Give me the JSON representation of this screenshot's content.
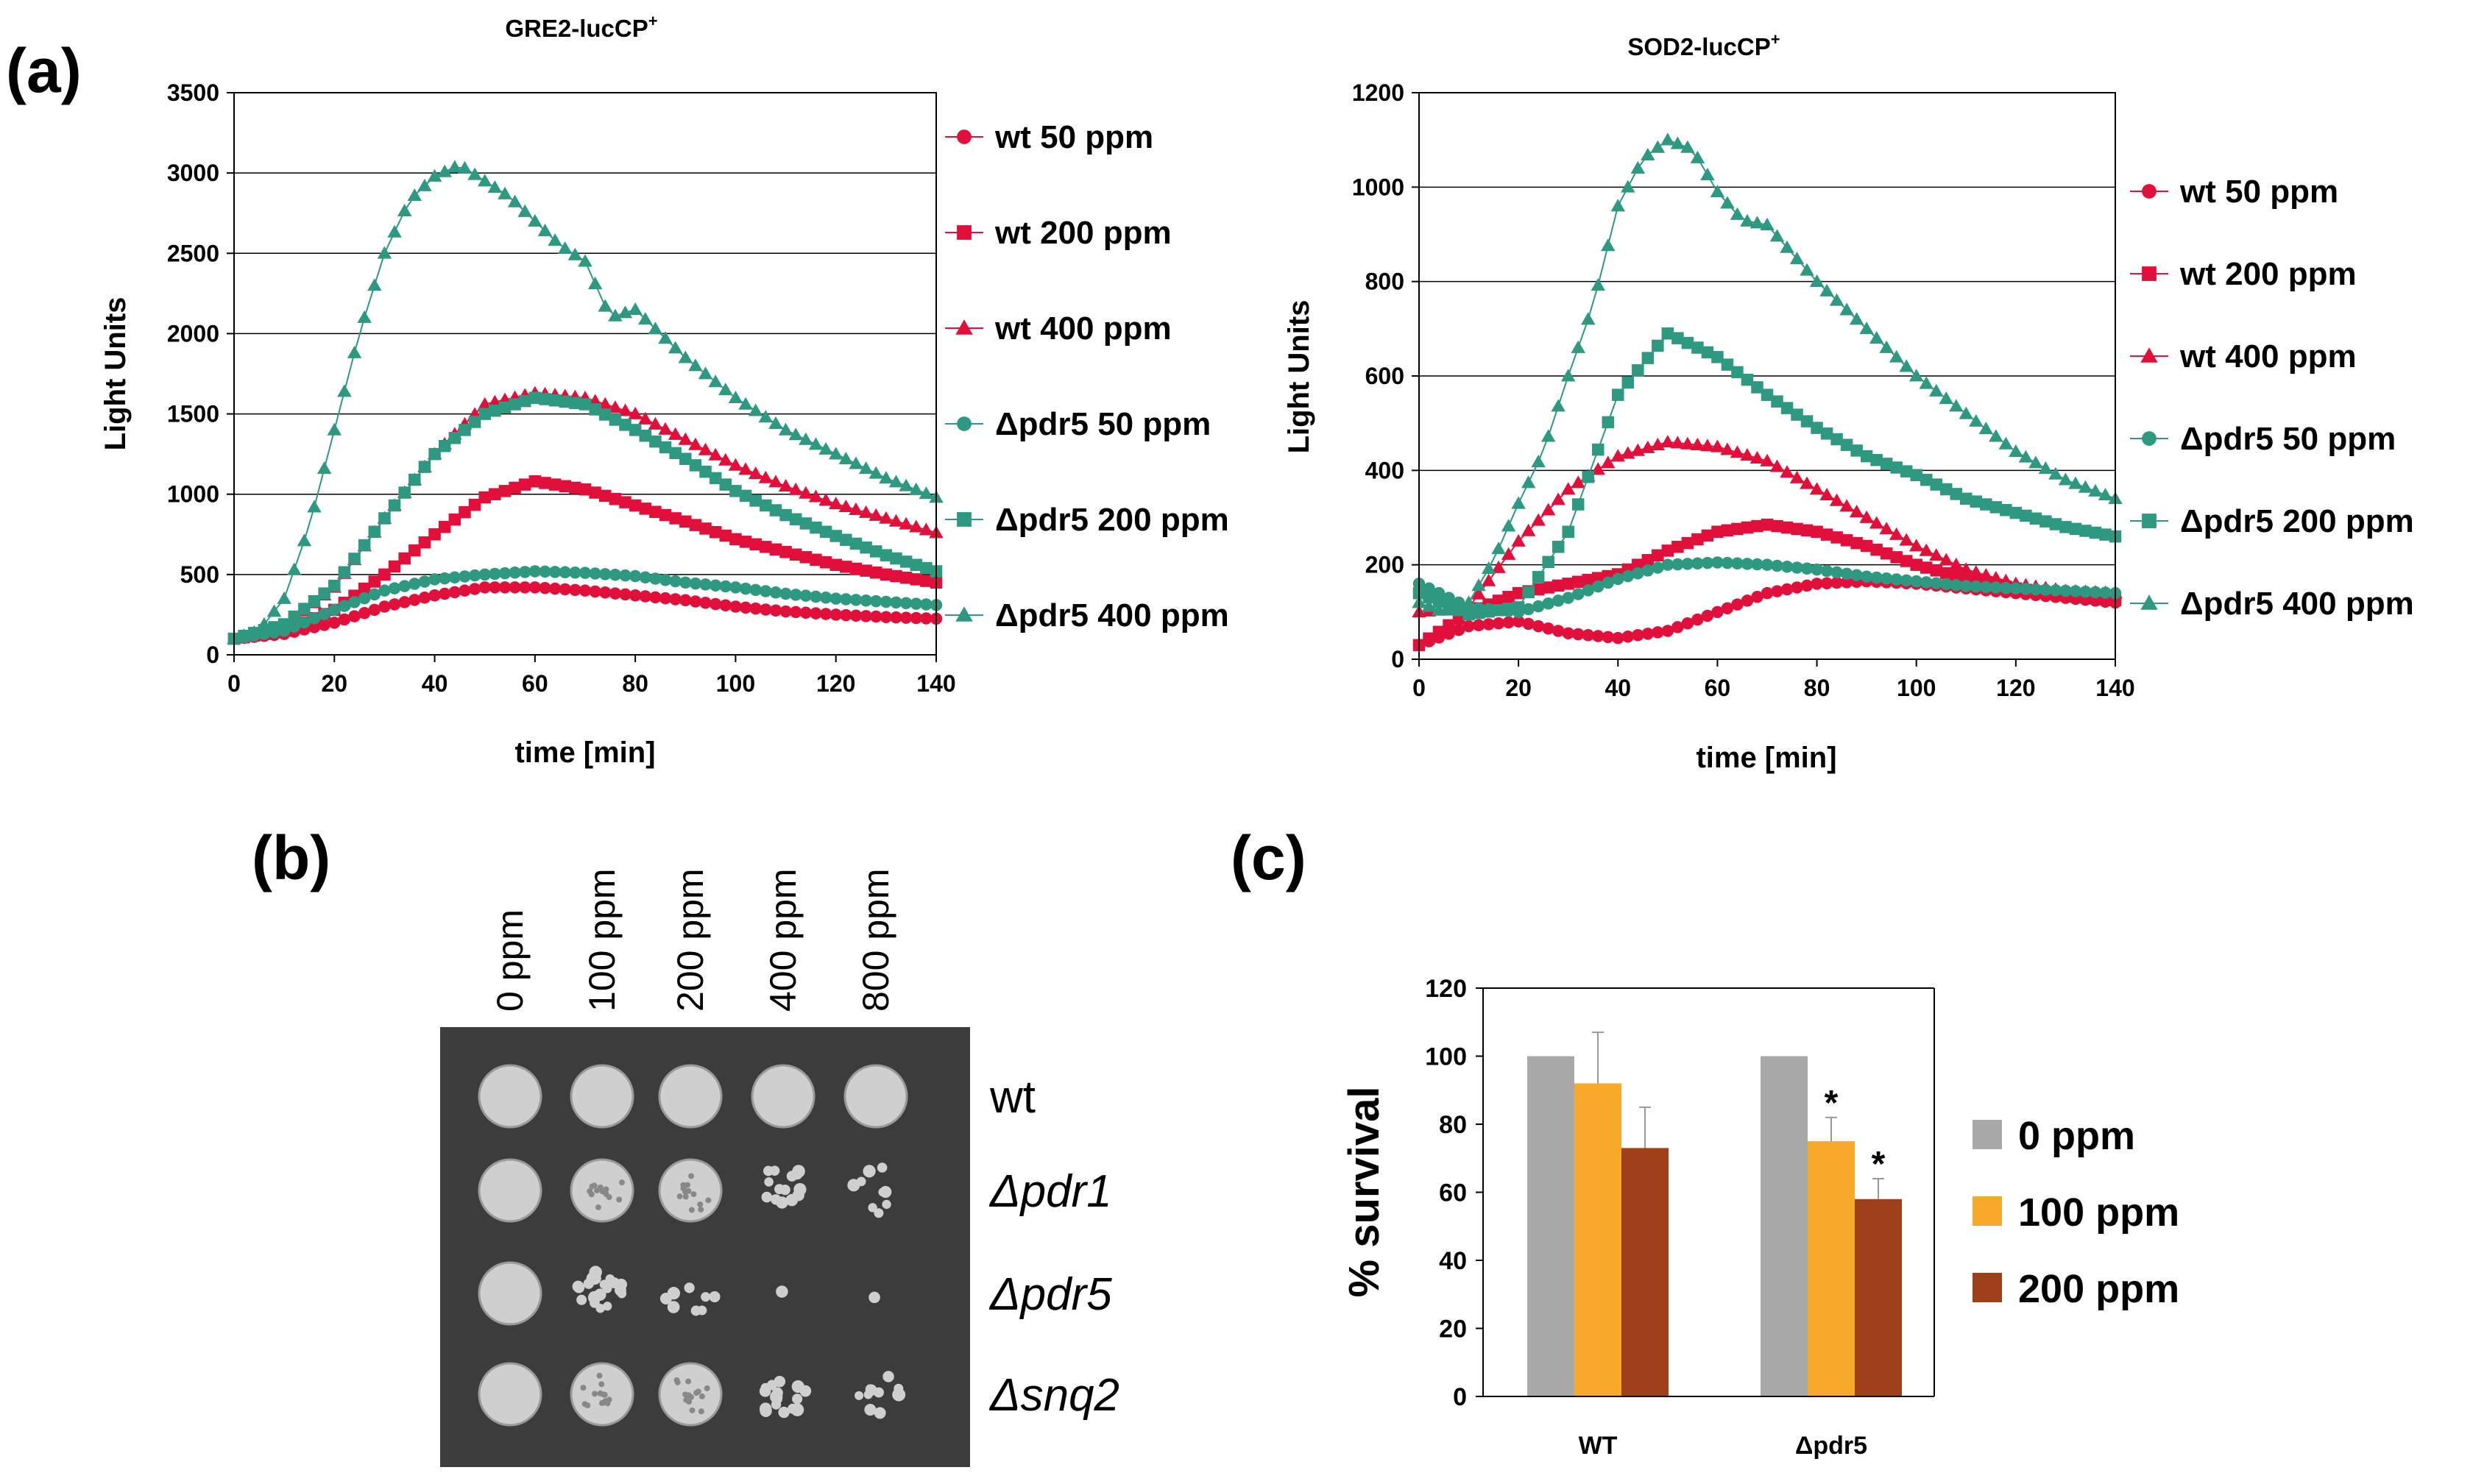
{
  "panels": {
    "a": "(a)",
    "b": "(b)",
    "c": "(c)"
  },
  "colors": {
    "wt": "#e0103a",
    "pdr5": "#2e9980",
    "bar_0": "#a8a8a8",
    "bar_100": "#f7a929",
    "bar_200": "#a0401a",
    "plate_bg": "#3c3c3c",
    "colony": "#cfcfcf"
  },
  "chart_data": [
    {
      "id": "gre2",
      "type": "line",
      "title": "GRE2-lucCP",
      "title_sup": "+",
      "xlabel": "time [min]",
      "ylabel": "Light Units",
      "xlim": [
        0,
        140
      ],
      "ylim": [
        0,
        3500
      ],
      "xticks": [
        "0",
        "20",
        "40",
        "60",
        "80",
        "100",
        "120",
        "140"
      ],
      "yticks": [
        "0",
        "500",
        "1000",
        "1500",
        "2000",
        "2500",
        "3000",
        "3500"
      ],
      "series": [
        {
          "name": "wt 50 ppm",
          "strain": "wt",
          "marker": "circle",
          "x": [
            0,
            10,
            20,
            30,
            40,
            50,
            60,
            70,
            80,
            90,
            100,
            110,
            120,
            130,
            140
          ],
          "y": [
            100,
            130,
            200,
            300,
            370,
            420,
            420,
            400,
            370,
            340,
            300,
            270,
            250,
            235,
            225
          ]
        },
        {
          "name": "wt 200 ppm",
          "strain": "wt",
          "marker": "square",
          "x": [
            0,
            10,
            20,
            30,
            40,
            50,
            60,
            70,
            80,
            90,
            100,
            110,
            120,
            130,
            140
          ],
          "y": [
            100,
            150,
            280,
            500,
            750,
            980,
            1080,
            1030,
            930,
            830,
            720,
            640,
            560,
            500,
            450
          ]
        },
        {
          "name": "wt 400 ppm",
          "strain": "wt",
          "marker": "triangle",
          "x": [
            0,
            10,
            20,
            30,
            40,
            50,
            60,
            70,
            80,
            90,
            100,
            110,
            120,
            130,
            140
          ],
          "y": [
            100,
            180,
            420,
            850,
            1250,
            1560,
            1630,
            1600,
            1500,
            1340,
            1180,
            1050,
            940,
            850,
            760
          ]
        },
        {
          "name": "Δpdr5 50 ppm",
          "strain": "pdr5",
          "marker": "circle",
          "x": [
            0,
            10,
            20,
            30,
            40,
            50,
            60,
            70,
            80,
            90,
            100,
            110,
            120,
            130,
            140
          ],
          "y": [
            100,
            150,
            280,
            400,
            470,
            500,
            520,
            510,
            490,
            450,
            420,
            380,
            350,
            330,
            310
          ]
        },
        {
          "name": "Δpdr5 200 ppm",
          "strain": "pdr5",
          "marker": "square",
          "x": [
            0,
            10,
            20,
            30,
            40,
            50,
            60,
            70,
            80,
            90,
            100,
            110,
            120,
            130,
            140
          ],
          "y": [
            100,
            190,
            430,
            850,
            1250,
            1500,
            1600,
            1560,
            1400,
            1220,
            1020,
            870,
            740,
            620,
            520
          ]
        },
        {
          "name": "Δpdr5 400 ppm",
          "strain": "pdr5",
          "marker": "triangle",
          "x": [
            0,
            5,
            10,
            15,
            20,
            25,
            30,
            35,
            40,
            45,
            50,
            55,
            60,
            65,
            70,
            75,
            80,
            90,
            100,
            110,
            120,
            130,
            140
          ],
          "y": [
            100,
            150,
            350,
            800,
            1400,
            2000,
            2500,
            2830,
            2980,
            3050,
            2950,
            2850,
            2700,
            2550,
            2450,
            2100,
            2150,
            1850,
            1600,
            1400,
            1250,
            1100,
            980
          ]
        }
      ]
    },
    {
      "id": "sod2",
      "type": "line",
      "title": "SOD2-lucCP",
      "title_sup": "+",
      "xlabel": "time [min]",
      "ylabel": "Light Units",
      "xlim": [
        0,
        140
      ],
      "ylim": [
        0,
        1200
      ],
      "xticks": [
        "0",
        "20",
        "40",
        "60",
        "80",
        "100",
        "120",
        "140"
      ],
      "yticks": [
        "0",
        "200",
        "400",
        "600",
        "800",
        "1000",
        "1200"
      ],
      "series": [
        {
          "name": "wt 50 ppm",
          "strain": "wt",
          "marker": "circle",
          "x": [
            0,
            10,
            20,
            30,
            40,
            50,
            60,
            70,
            80,
            90,
            100,
            110,
            120,
            130,
            140
          ],
          "y": [
            30,
            70,
            80,
            55,
            45,
            60,
            100,
            140,
            160,
            165,
            160,
            150,
            140,
            130,
            120
          ]
        },
        {
          "name": "wt 200 ppm",
          "strain": "wt",
          "marker": "square",
          "x": [
            0,
            10,
            20,
            30,
            40,
            50,
            60,
            70,
            80,
            90,
            100,
            110,
            120,
            130,
            140
          ],
          "y": [
            30,
            100,
            140,
            160,
            180,
            230,
            270,
            285,
            270,
            240,
            200,
            170,
            150,
            135,
            125
          ]
        },
        {
          "name": "wt 400 ppm",
          "strain": "wt",
          "marker": "triangle",
          "x": [
            0,
            10,
            20,
            30,
            40,
            50,
            60,
            70,
            80,
            90,
            100,
            110,
            120,
            130,
            140
          ],
          "y": [
            100,
            110,
            250,
            360,
            430,
            460,
            450,
            420,
            360,
            300,
            240,
            190,
            160,
            145,
            140
          ]
        },
        {
          "name": "Δpdr5 50 ppm",
          "strain": "pdr5",
          "marker": "circle",
          "x": [
            0,
            10,
            20,
            30,
            40,
            50,
            60,
            70,
            80,
            90,
            100,
            110,
            120,
            130,
            140
          ],
          "y": [
            160,
            110,
            100,
            130,
            170,
            200,
            205,
            200,
            190,
            175,
            165,
            155,
            150,
            145,
            140
          ]
        },
        {
          "name": "Δpdr5 200 ppm",
          "strain": "pdr5",
          "marker": "square",
          "x": [
            0,
            10,
            20,
            30,
            40,
            50,
            60,
            70,
            80,
            90,
            100,
            110,
            120,
            130,
            140
          ],
          "y": [
            140,
            95,
            110,
            270,
            560,
            690,
            640,
            560,
            490,
            430,
            390,
            340,
            310,
            280,
            260
          ]
        },
        {
          "name": "Δpdr5 400 ppm",
          "strain": "pdr5",
          "marker": "triangle",
          "x": [
            0,
            5,
            10,
            15,
            20,
            25,
            30,
            35,
            40,
            45,
            50,
            55,
            60,
            65,
            70,
            80,
            90,
            100,
            110,
            120,
            130,
            140
          ],
          "y": [
            120,
            100,
            120,
            210,
            330,
            440,
            600,
            750,
            960,
            1060,
            1100,
            1080,
            990,
            930,
            920,
            800,
            700,
            600,
            520,
            440,
            380,
            340
          ]
        }
      ]
    },
    {
      "id": "survival",
      "type": "bar",
      "ylabel": "% survival",
      "ylim": [
        0,
        120
      ],
      "yticks": [
        "0",
        "20",
        "40",
        "60",
        "80",
        "100",
        "120"
      ],
      "categories": [
        "WT",
        "Δpdr5"
      ],
      "series": [
        {
          "name": "0 ppm",
          "color_key": "bar_0",
          "values": [
            100,
            100
          ],
          "errors": [
            0,
            0
          ]
        },
        {
          "name": "100 ppm",
          "color_key": "bar_100",
          "values": [
            92,
            75
          ],
          "errors": [
            15,
            7
          ]
        },
        {
          "name": "200 ppm",
          "color_key": "bar_200",
          "values": [
            73,
            58
          ],
          "errors": [
            12,
            6
          ]
        }
      ],
      "annotations": [
        {
          "category": "Δpdr5",
          "series": "100 ppm",
          "text": "*"
        },
        {
          "category": "Δpdr5",
          "series": "200 ppm",
          "text": "*"
        }
      ]
    }
  ],
  "plate": {
    "columns": [
      "0 ppm",
      "100 ppm",
      "200 ppm",
      "400 ppm",
      "800 ppm"
    ],
    "rows": [
      {
        "label": "wt",
        "italic": false,
        "growth": [
          1,
          1,
          1,
          1,
          1
        ]
      },
      {
        "label": "Δpdr1",
        "italic": true,
        "growth": [
          1,
          0.95,
          0.9,
          0.55,
          0.35
        ]
      },
      {
        "label": "Δpdr5",
        "italic": true,
        "growth": [
          1,
          0.75,
          0.3,
          0.04,
          0.02
        ]
      },
      {
        "label": "Δsnq2",
        "italic": true,
        "growth": [
          1,
          0.95,
          0.85,
          0.6,
          0.4
        ]
      }
    ]
  }
}
